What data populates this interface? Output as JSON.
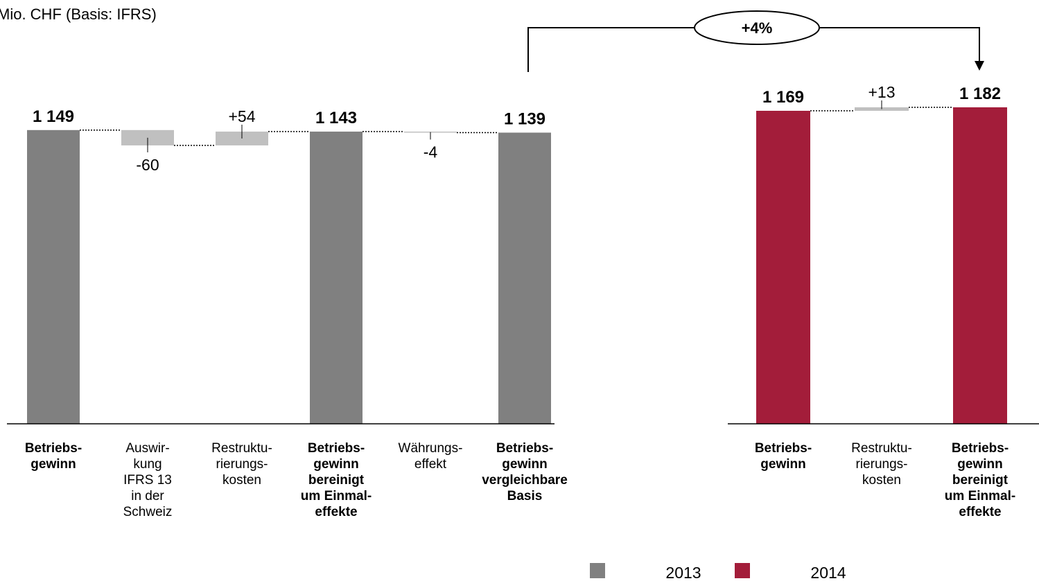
{
  "title": "Mio. CHF (Basis: IFRS)",
  "annotation": "+4%",
  "chart_data": [
    {
      "type": "waterfall",
      "name": "2013",
      "color": "#808080",
      "delta_color": "#c0c0c0",
      "categories": [
        "Betriebs-\ngewinn",
        "Auswir-\nkung\nIFRS 13\nin der\nSchweiz",
        "Restruktu-\nrierungs-\nkosten",
        "Betriebs-\ngewinn\nbereinigt\num Einmal-\neffekte",
        "Währungs-\neffekt",
        "Betriebs-\ngewinn\nvergleichbare\nBasis"
      ],
      "measure": [
        "total",
        "relative",
        "relative",
        "total",
        "relative",
        "total"
      ],
      "values": [
        1149,
        -60,
        54,
        1143,
        -4,
        1139
      ],
      "value_labels": [
        "1 149",
        "-60",
        "+54",
        "1 143",
        "-4",
        "1 139"
      ],
      "ylim": [
        0,
        1200
      ]
    },
    {
      "type": "waterfall",
      "name": "2014",
      "color": "#a31d3a",
      "delta_color": "#c0c0c0",
      "categories": [
        "Betriebs-\ngewinn",
        "Restruktu-\nrierungs-\nkosten",
        "Betriebs-\ngewinn\nbereinigt\num Einmal-\neffekte"
      ],
      "measure": [
        "total",
        "relative",
        "total"
      ],
      "values": [
        1169,
        13,
        1182
      ],
      "value_labels": [
        "1 169",
        "+13",
        "1 182"
      ],
      "ylim": [
        0,
        1200
      ]
    }
  ]
}
